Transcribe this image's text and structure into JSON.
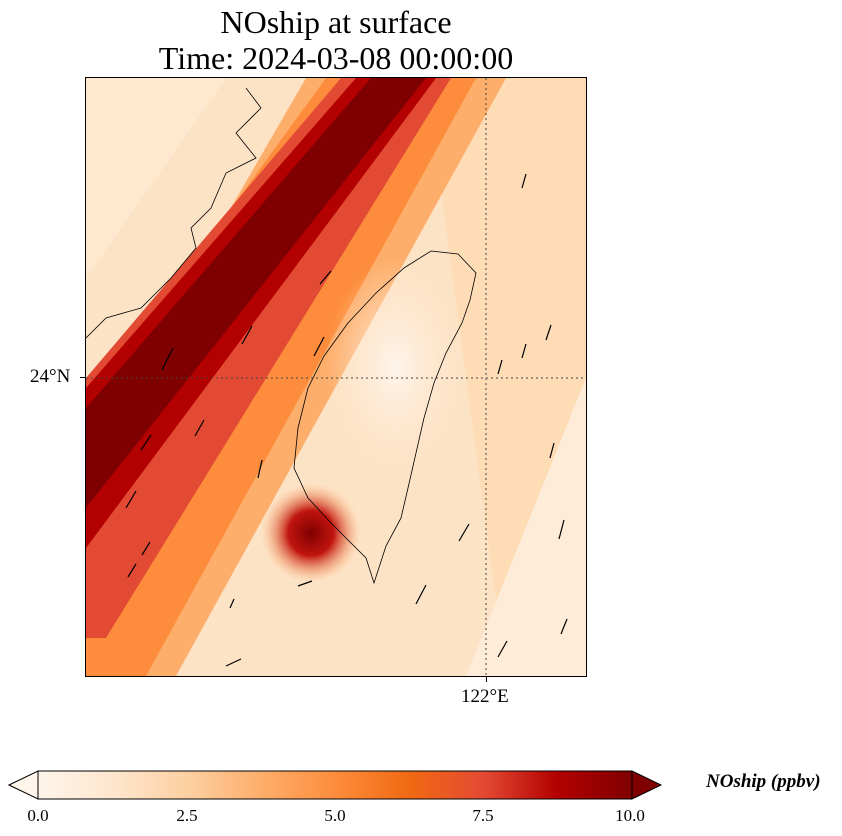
{
  "title": {
    "line1": "NOship at surface",
    "line2": "Time: 2024-03-08 00:00:00"
  },
  "axes": {
    "lat_label": "24°N",
    "lon_label": "122°E"
  },
  "colorbar": {
    "label": "NOship (ppbv)",
    "ticks": [
      "0.0",
      "2.5",
      "5.0",
      "7.5",
      "10.0"
    ],
    "range": [
      0,
      10
    ],
    "colors": [
      "#fff5eb",
      "#fee6ce",
      "#fdd0a2",
      "#fdae6b",
      "#fd8d3c",
      "#f16913",
      "#e34a33",
      "#b30000",
      "#7f0000"
    ],
    "extend": "both"
  },
  "map": {
    "field": "NOship",
    "level": "surface",
    "units": "ppbv",
    "gridlines": "dotted"
  }
}
